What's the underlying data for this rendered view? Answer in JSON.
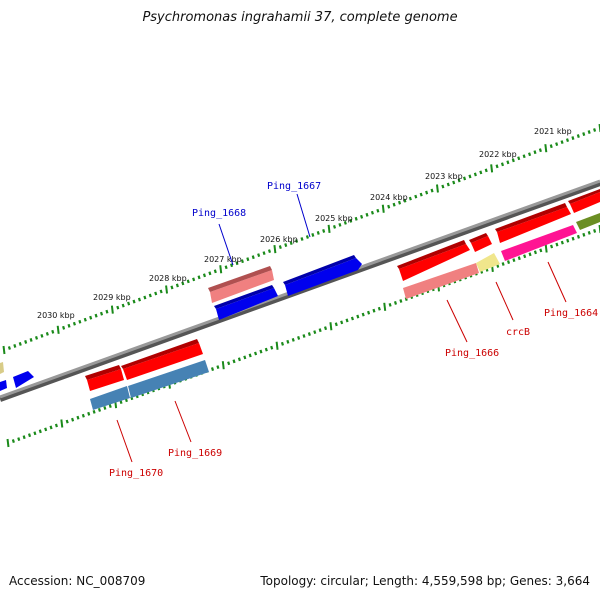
{
  "title": "Psychromonas ingrahamii 37, complete genome",
  "footer": {
    "accession": "Accession: NC_008709",
    "stats": "Topology: circular; Length: 4,559,598 bp; Genes: 3,664"
  },
  "colors": {
    "forward_cds": "#ff0000",
    "forward_cds_pale": "#f08080",
    "reverse_cds": "#0000ee",
    "reverse_cds_steel": "#4682b4",
    "reverse_cds_pale": "#f08080",
    "magenta": "#ff1493",
    "olive": "#6b8e23",
    "khaki": "#f0e68c",
    "backbone": "#808080",
    "ticks": "#1a8a1a",
    "label_forward": "#0000cc",
    "label_reverse": "#cc0000"
  },
  "scale_labels": [
    "2021 kbp",
    "2022 kbp",
    "2023 kbp",
    "2024 kbp",
    "2025 kbp",
    "2026 kbp",
    "2027 kbp",
    "2028 kbp",
    "2029 kbp",
    "2030 kbp"
  ],
  "gene_labels": [
    {
      "text": "Ping_1667",
      "strand": "upper"
    },
    {
      "text": "Ping_1668",
      "strand": "upper"
    },
    {
      "text": "Ping_1666",
      "strand": "lower"
    },
    {
      "text": "crcB",
      "strand": "lower"
    },
    {
      "text": "Ping_1664",
      "strand": "lower"
    },
    {
      "text": "Ping_1669",
      "strand": "lower"
    },
    {
      "text": "Ping_1670",
      "strand": "lower"
    }
  ]
}
